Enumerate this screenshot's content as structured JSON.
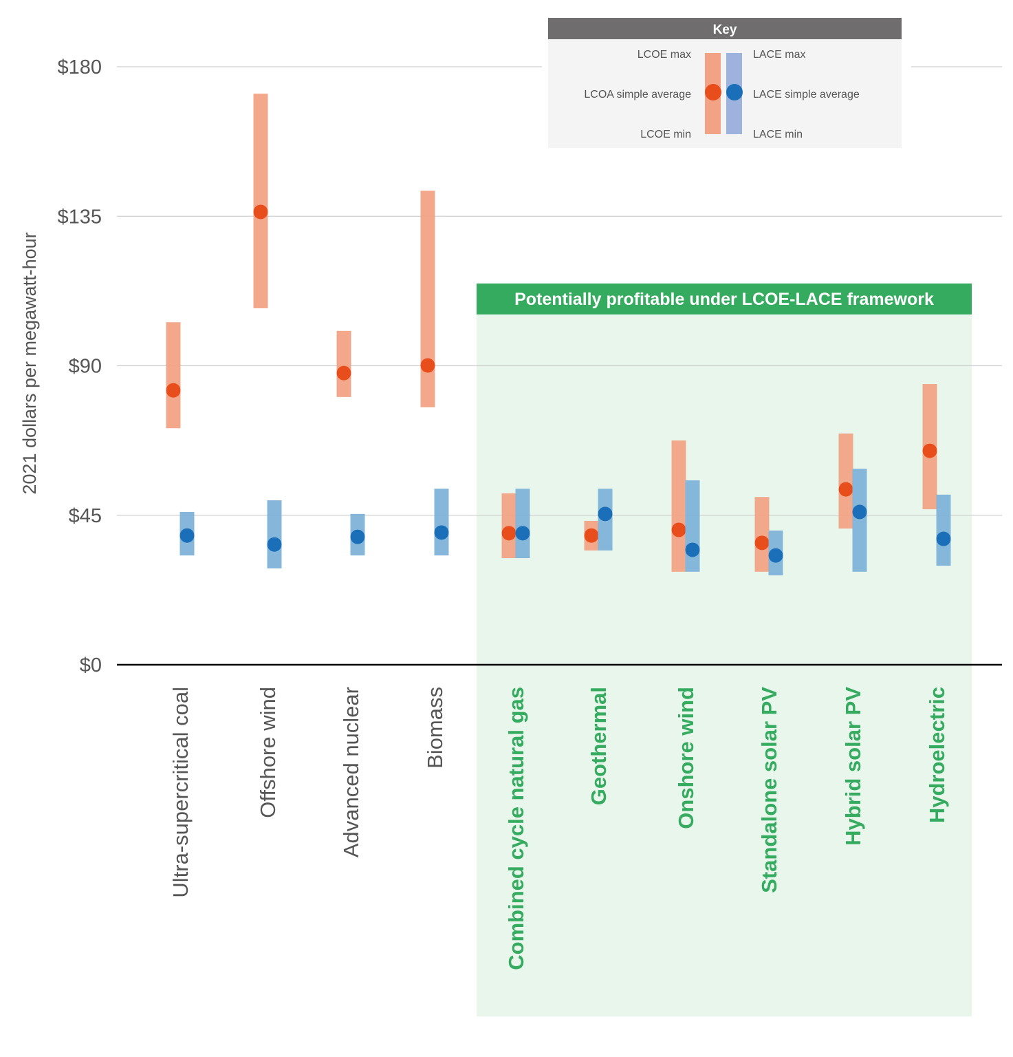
{
  "chart_data": {
    "type": "range-bar-with-points",
    "ylabel": "2021 dollars per megawatt-hour",
    "ylim": [
      0,
      180
    ],
    "yticks": [
      0,
      45,
      90,
      135,
      180
    ],
    "ytick_labels": [
      "$0",
      "$45",
      "$90",
      "$135",
      "$180"
    ],
    "grid": true,
    "categories": [
      "Ultra-supercritical coal",
      "Offshore wind",
      "Advanced nuclear",
      "Biomass",
      "Combined cycle natural gas",
      "Geothermal",
      "Onshore wind",
      "Standalone solar PV",
      "Hybrid solar PV",
      "Hydroelectric"
    ],
    "highlight": {
      "label": "Potentially profitable under LCOE-LACE framework",
      "first_category_index": 4,
      "color": "#34ab5f",
      "background": "#e8f6ec"
    },
    "series": [
      {
        "name": "LCOE",
        "bar_color": "#f2a386",
        "dot_color": "#e84e1b",
        "min": [
          71.2,
          107.3,
          80.6,
          77.5,
          32.1,
          34.4,
          28.0,
          28.0,
          41.0,
          46.8
        ],
        "max": [
          103.1,
          171.9,
          100.5,
          142.7,
          51.6,
          43.3,
          67.5,
          50.5,
          69.6,
          84.5
        ],
        "avg": [
          82.6,
          136.3,
          87.8,
          90.1,
          39.6,
          38.9,
          40.6,
          36.7,
          52.8,
          64.4
        ]
      },
      {
        "name": "LACE",
        "bar_color": "#80b3d9",
        "dot_color": "#1a6fb8",
        "min": [
          32.9,
          29.0,
          32.9,
          32.9,
          32.1,
          34.4,
          28.0,
          26.9,
          28.0,
          29.8
        ],
        "max": [
          46.0,
          49.5,
          45.4,
          53.0,
          53.0,
          53.0,
          55.5,
          40.4,
          59.0,
          51.2
        ],
        "avg": [
          38.9,
          36.2,
          38.5,
          39.8,
          39.6,
          45.4,
          34.6,
          32.9,
          46.0,
          37.9
        ]
      }
    ],
    "legend": {
      "title": "Key",
      "placement": "top-right",
      "lcoe_max": "LCOE max",
      "lcoe_avg": "LCOA simple average",
      "lcoe_min": "LCOE min",
      "lace_max": "LACE max",
      "lace_avg": "LACE simple average",
      "lace_min": "LACE min",
      "lace_bar_color": "#9db3dd"
    }
  }
}
